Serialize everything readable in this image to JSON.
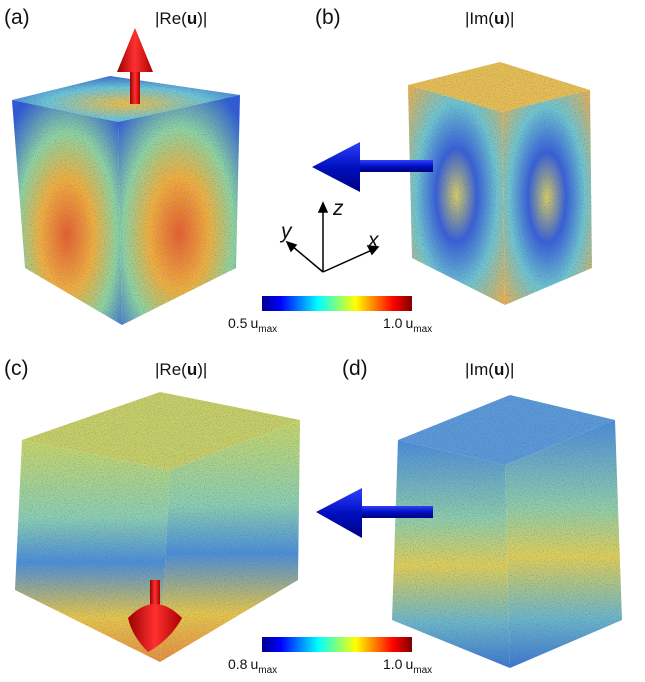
{
  "panels": [
    {
      "label": "(a)",
      "title": {
        "before": "|Re(",
        "bold": "u",
        "after": ")|"
      }
    },
    {
      "label": "(b)",
      "title": {
        "before": "|Im(",
        "bold": "u",
        "after": ")|"
      }
    },
    {
      "label": "(c)",
      "title": {
        "before": "|Re(",
        "bold": "u",
        "after": ")|"
      }
    },
    {
      "label": "(d)",
      "title": {
        "before": "|Im(",
        "bold": "u",
        "after": ")|"
      }
    }
  ],
  "colorbars": [
    {
      "min": {
        "value": "0.5",
        "symbol": "u",
        "sub": "max"
      },
      "max": {
        "value": "1.0",
        "symbol": "u",
        "sub": "max"
      }
    },
    {
      "min": {
        "value": "0.8",
        "symbol": "u",
        "sub": "max"
      },
      "max": {
        "value": "1.0",
        "symbol": "u",
        "sub": "max"
      }
    }
  ],
  "axes": {
    "x": "x",
    "y": "y",
    "z": "z"
  }
}
